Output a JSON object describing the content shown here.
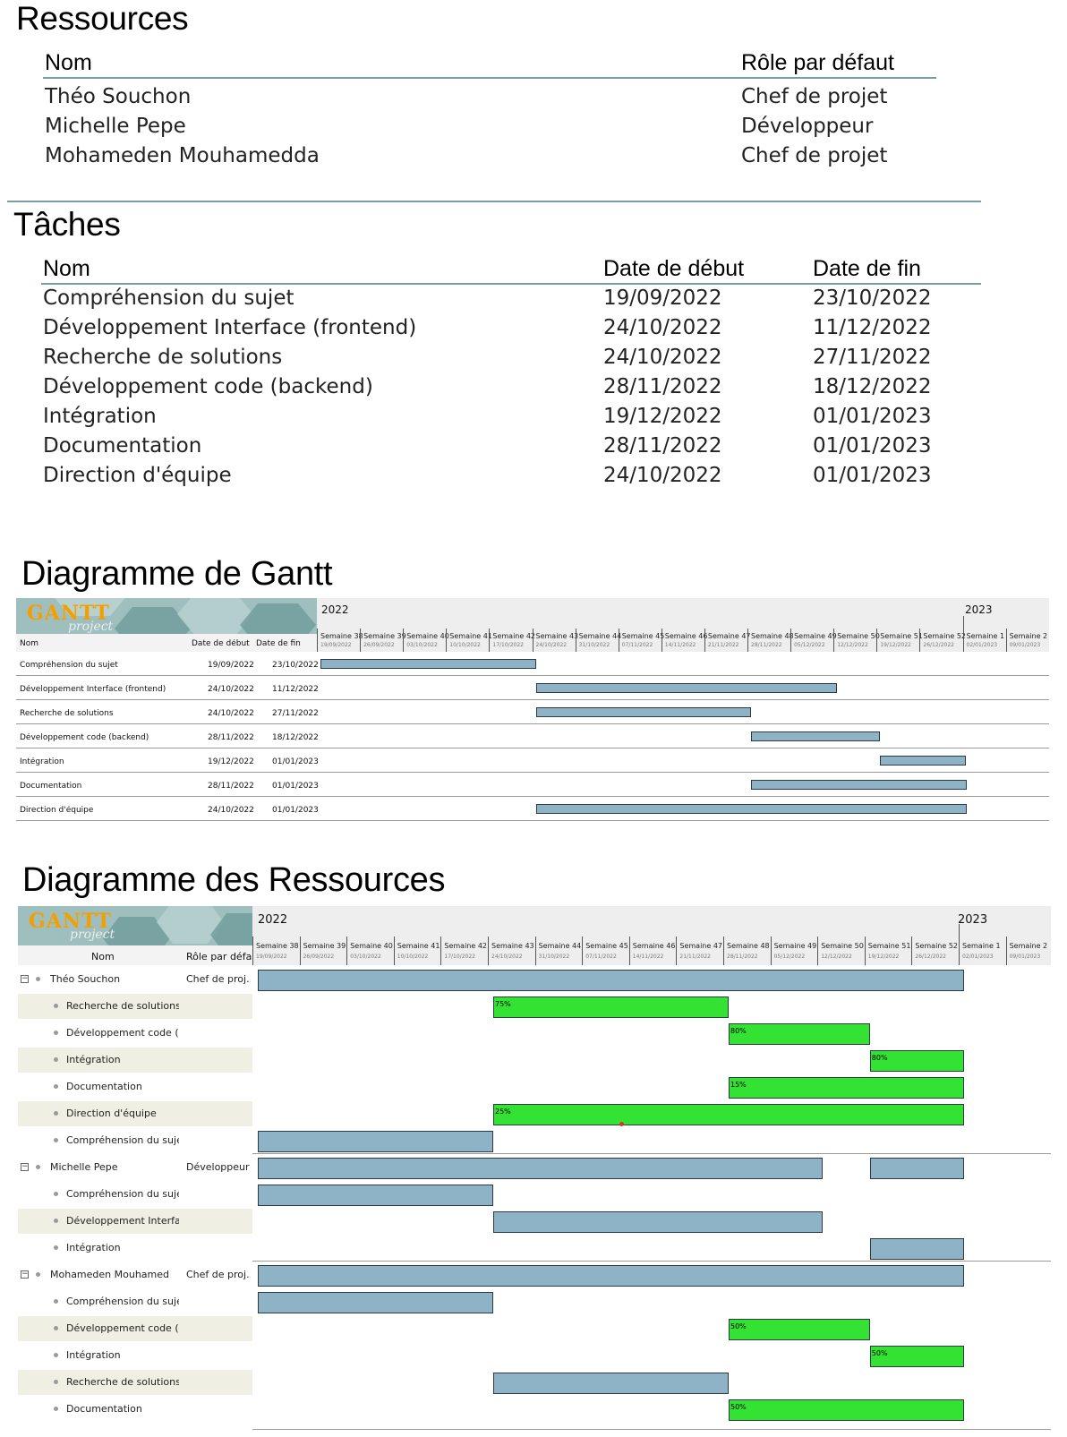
{
  "resources": {
    "title": "Ressources",
    "headers": {
      "name": "Nom",
      "role": "Rôle par défaut"
    },
    "rows": [
      {
        "name": "Théo Souchon",
        "role": "Chef de projet"
      },
      {
        "name": "Michelle Pepe",
        "role": "Développeur"
      },
      {
        "name": "Mohameden Mouhamedda",
        "role": "Chef de projet"
      }
    ]
  },
  "tasks": {
    "title": "Tâches",
    "headers": {
      "name": "Nom",
      "start": "Date de début",
      "end": "Date de fin"
    },
    "rows": [
      {
        "name": "Compréhension du sujet",
        "start": "19/09/2022",
        "end": "23/10/2022"
      },
      {
        "name": "Développement Interface (frontend)",
        "start": "24/10/2022",
        "end": "11/12/2022"
      },
      {
        "name": "Recherche de solutions",
        "start": "24/10/2022",
        "end": "27/11/2022"
      },
      {
        "name": "Développement code (backend)",
        "start": "28/11/2022",
        "end": "18/12/2022"
      },
      {
        "name": "Intégration",
        "start": "19/12/2022",
        "end": "01/01/2023"
      },
      {
        "name": "Documentation",
        "start": "28/11/2022",
        "end": "01/01/2023"
      },
      {
        "name": "Direction d'équipe",
        "start": "24/10/2022",
        "end": "01/01/2023"
      }
    ]
  },
  "logo": {
    "word": "GANTT",
    "sub": "project"
  },
  "gantt": {
    "title": "Diagramme de Gantt",
    "year_2022": "2022",
    "year_2023": "2023",
    "headers": {
      "name": "Nom",
      "start": "Date de début",
      "end": "Date de fin"
    },
    "weeks": [
      {
        "label": "Semaine 38",
        "date": "19/09/2022"
      },
      {
        "label": "Semaine 39",
        "date": "26/09/2022"
      },
      {
        "label": "Semaine 40",
        "date": "03/10/2022"
      },
      {
        "label": "Semaine 41",
        "date": "10/10/2022"
      },
      {
        "label": "Semaine 42",
        "date": "17/10/2022"
      },
      {
        "label": "Semaine 43",
        "date": "24/10/2022"
      },
      {
        "label": "Semaine 44",
        "date": "31/10/2022"
      },
      {
        "label": "Semaine 45",
        "date": "07/11/2022"
      },
      {
        "label": "Semaine 46",
        "date": "14/11/2022"
      },
      {
        "label": "Semaine 47",
        "date": "21/11/2022"
      },
      {
        "label": "Semaine 48",
        "date": "28/11/2022"
      },
      {
        "label": "Semaine 49",
        "date": "05/12/2022"
      },
      {
        "label": "Semaine 50",
        "date": "12/12/2022"
      },
      {
        "label": "Semaine 51",
        "date": "19/12/2022"
      },
      {
        "label": "Semaine 52",
        "date": "26/12/2022"
      },
      {
        "label": "Semaine 1",
        "date": "02/01/2023"
      },
      {
        "label": "Semaine 2",
        "date": "09/01/2023"
      }
    ],
    "rows": [
      {
        "name": "Compréhension du sujet",
        "start": "19/09/2022",
        "end": "23/10/2022",
        "bar": [
          0,
          5
        ]
      },
      {
        "name": "Développement Interface (frontend)",
        "start": "24/10/2022",
        "end": "11/12/2022",
        "bar": [
          5,
          12
        ]
      },
      {
        "name": "Recherche de solutions",
        "start": "24/10/2022",
        "end": "27/11/2022",
        "bar": [
          5,
          10
        ]
      },
      {
        "name": "Développement code (backend)",
        "start": "28/11/2022",
        "end": "18/12/2022",
        "bar": [
          10,
          13
        ]
      },
      {
        "name": "Intégration",
        "start": "19/12/2022",
        "end": "01/01/2023",
        "bar": [
          13,
          15
        ]
      },
      {
        "name": "Documentation",
        "start": "28/11/2022",
        "end": "01/01/2023",
        "bar": [
          10,
          15
        ]
      },
      {
        "name": "Direction d'équipe",
        "start": "24/10/2022",
        "end": "01/01/2023",
        "bar": [
          5,
          15
        ]
      }
    ]
  },
  "resource_chart": {
    "title": "Diagramme des Ressources",
    "year_2022": "2022",
    "year_2023": "2023",
    "headers": {
      "name": "Nom",
      "role": "Rôle par défau"
    },
    "rows": [
      {
        "kind": "person",
        "name": "Théo Souchon",
        "role": "Chef de proj...",
        "bars": [
          [
            0,
            15,
            "blue",
            ""
          ]
        ]
      },
      {
        "kind": "task",
        "name": "Recherche de solutions",
        "bars": [
          [
            5,
            10,
            "green",
            "75%"
          ]
        ]
      },
      {
        "kind": "task",
        "name": "Développement code (...",
        "bars": [
          [
            10,
            13,
            "green",
            "80%"
          ]
        ]
      },
      {
        "kind": "task",
        "name": "Intégration",
        "bars": [
          [
            13,
            15,
            "green",
            "80%"
          ]
        ]
      },
      {
        "kind": "task",
        "name": "Documentation",
        "bars": [
          [
            10,
            15,
            "green",
            "15%"
          ]
        ]
      },
      {
        "kind": "task",
        "name": "Direction d'équipe",
        "bars": [
          [
            5,
            15,
            "green",
            "25%"
          ]
        ]
      },
      {
        "kind": "task",
        "name": "Compréhension du sujet",
        "bars": [
          [
            0,
            5,
            "blue",
            ""
          ]
        ]
      },
      {
        "kind": "person",
        "name": "Michelle Pepe",
        "role": "Développeur",
        "bars": [
          [
            0,
            12,
            "blue",
            ""
          ],
          [
            13,
            15,
            "blue",
            ""
          ]
        ]
      },
      {
        "kind": "task",
        "name": "Compréhension du sujet",
        "bars": [
          [
            0,
            5,
            "blue",
            ""
          ]
        ]
      },
      {
        "kind": "task",
        "name": "Développement Interfa...",
        "bars": [
          [
            5,
            12,
            "blue",
            ""
          ]
        ]
      },
      {
        "kind": "task",
        "name": "Intégration",
        "bars": [
          [
            13,
            15,
            "blue",
            ""
          ]
        ]
      },
      {
        "kind": "person",
        "name": "Mohameden Mouhamedda",
        "role": "Chef de proj...",
        "bars": [
          [
            0,
            15,
            "blue",
            ""
          ]
        ]
      },
      {
        "kind": "task",
        "name": "Compréhension du sujet",
        "bars": [
          [
            0,
            5,
            "blue",
            ""
          ]
        ]
      },
      {
        "kind": "task",
        "name": "Développement code (...",
        "bars": [
          [
            10,
            13,
            "green",
            "50%"
          ]
        ]
      },
      {
        "kind": "task",
        "name": "Intégration",
        "bars": [
          [
            13,
            15,
            "green",
            "50%"
          ]
        ]
      },
      {
        "kind": "task",
        "name": "Recherche de solutions",
        "bars": [
          [
            5,
            10,
            "blue",
            ""
          ]
        ]
      },
      {
        "kind": "task",
        "name": "Documentation",
        "bars": [
          [
            10,
            15,
            "green",
            "50%"
          ]
        ]
      }
    ]
  },
  "colors": {
    "bar_blue": "#8eb2c6",
    "bar_green": "#33e233",
    "rule": "#7a9ea5",
    "logo_orange": "#f59e00"
  }
}
